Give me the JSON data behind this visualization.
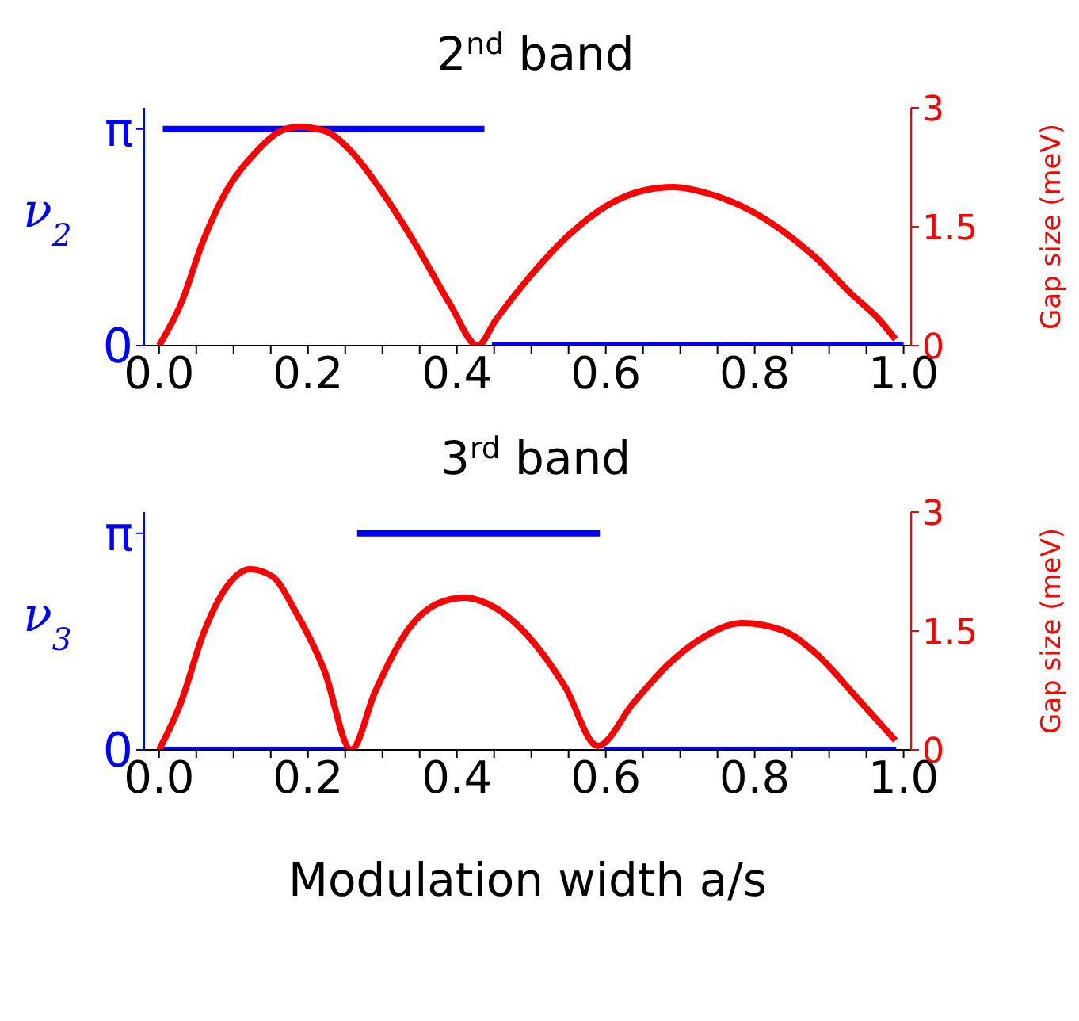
{
  "chart_data": [
    {
      "type": "line",
      "title": "2$^{nd}$ band",
      "ylabel": "ν$_{2}$",
      "y2label": "Gap size (meV)",
      "xlim": [
        -0.02,
        1.01
      ],
      "xticks": [
        {
          "value": 0,
          "label": "0.0"
        },
        {
          "value": 0.05,
          "label": null
        },
        {
          "value": 0.1,
          "label": null
        },
        {
          "value": 0.15,
          "label": null
        },
        {
          "value": 0.2,
          "label": "0.2"
        },
        {
          "value": 0.25,
          "label": null
        },
        {
          "value": 0.3,
          "label": null
        },
        {
          "value": 0.35,
          "label": null
        },
        {
          "value": 0.4,
          "label": "0.4"
        },
        {
          "value": 0.45,
          "label": null
        },
        {
          "value": 0.5,
          "label": null
        },
        {
          "value": 0.55,
          "label": null
        },
        {
          "value": 0.6,
          "label": "0.6"
        },
        {
          "value": 0.65,
          "label": null
        },
        {
          "value": 0.7,
          "label": null
        },
        {
          "value": 0.75,
          "label": null
        },
        {
          "value": 0.8,
          "label": "0.8"
        },
        {
          "value": 0.85,
          "label": null
        },
        {
          "value": 0.9,
          "label": null
        },
        {
          "value": 0.95,
          "label": null
        },
        {
          "value": 1,
          "label": "1.0"
        }
      ],
      "ylim": [
        0,
        3.45
      ],
      "yticks": [
        0,
        {
          "value": 3.1416,
          "label": "π"
        }
      ],
      "y2lim": [
        0,
        3
      ],
      "y2ticks": [
        0,
        1.5,
        3
      ],
      "line_style": "solid",
      "series": [
        {
          "color": "#0000ff",
          "x": [
            0.005,
            0.437,
            0.442,
            0.447,
            1.0
          ],
          "values": [
            3.1416,
            3.1416,
            null,
            0,
            0
          ]
        },
        {
          "color": "#ff0000",
          "axis": "y2",
          "x": [
            0,
            0.029,
            0.06,
            0.091,
            0.129,
            0.16,
            0.187,
            0.222,
            0.26,
            0.298,
            0.345,
            0.391,
            0.428,
            0.452,
            0.498,
            0.552,
            0.606,
            0.652,
            0.691,
            0.737,
            0.791,
            0.837,
            0.883,
            0.929,
            0.968,
            0.989
          ],
          "values": [
            0,
            0.52,
            1.34,
            1.96,
            2.43,
            2.69,
            2.76,
            2.71,
            2.43,
            1.96,
            1.27,
            0.52,
            0,
            0.32,
            0.87,
            1.41,
            1.79,
            1.96,
            2.0,
            1.92,
            1.72,
            1.45,
            1.1,
            0.66,
            0.32,
            0.08
          ]
        }
      ]
    },
    {
      "type": "line",
      "title": "3$^{rd}$ band",
      "xlabel": "Modulation width  a/s",
      "ylabel": "ν$_{3}$",
      "y2label": "Gap size (meV)",
      "xlim": [
        -0.02,
        1.01
      ],
      "xticks": [
        {
          "value": 0,
          "label": "0.0"
        },
        {
          "value": 0.05,
          "label": null
        },
        {
          "value": 0.1,
          "label": null
        },
        {
          "value": 0.15,
          "label": null
        },
        {
          "value": 0.2,
          "label": "0.2"
        },
        {
          "value": 0.25,
          "label": null
        },
        {
          "value": 0.3,
          "label": null
        },
        {
          "value": 0.35,
          "label": null
        },
        {
          "value": 0.4,
          "label": "0.4"
        },
        {
          "value": 0.45,
          "label": null
        },
        {
          "value": 0.5,
          "label": null
        },
        {
          "value": 0.55,
          "label": null
        },
        {
          "value": 0.6,
          "label": "0.6"
        },
        {
          "value": 0.65,
          "label": null
        },
        {
          "value": 0.7,
          "label": null
        },
        {
          "value": 0.75,
          "label": null
        },
        {
          "value": 0.8,
          "label": "0.8"
        },
        {
          "value": 0.85,
          "label": null
        },
        {
          "value": 0.9,
          "label": null
        },
        {
          "value": 0.95,
          "label": null
        },
        {
          "value": 1,
          "label": "1.0"
        }
      ],
      "ylim": [
        0,
        3.45
      ],
      "yticks": [
        0,
        {
          "value": 3.1416,
          "label": "π"
        }
      ],
      "y2lim": [
        0,
        3
      ],
      "y2ticks": [
        0,
        1.5,
        3
      ],
      "line_style": "solid",
      "series": [
        {
          "color": "#0000ff",
          "x": [
            0.005,
            0.256,
            0.261,
            0.266,
            0.592,
            0.594,
            0.597,
            0.99
          ],
          "values": [
            0,
            0,
            null,
            3.1416,
            3.1416,
            null,
            0,
            0
          ]
        },
        {
          "color": "#ff0000",
          "axis": "y2",
          "x": [
            0,
            0.029,
            0.06,
            0.091,
            0.122,
            0.152,
            0.183,
            0.222,
            0.258,
            0.29,
            0.337,
            0.375,
            0.41,
            0.452,
            0.498,
            0.545,
            0.589,
            0.637,
            0.683,
            0.729,
            0.783,
            0.837,
            0.883,
            0.937,
            0.989
          ],
          "values": [
            0,
            0.59,
            1.48,
            2.06,
            2.28,
            2.19,
            1.75,
            1.0,
            0,
            0.73,
            1.55,
            1.85,
            1.92,
            1.79,
            1.41,
            0.8,
            0.05,
            0.59,
            1.07,
            1.41,
            1.6,
            1.51,
            1.21,
            0.66,
            0.12
          ]
        }
      ]
    }
  ]
}
